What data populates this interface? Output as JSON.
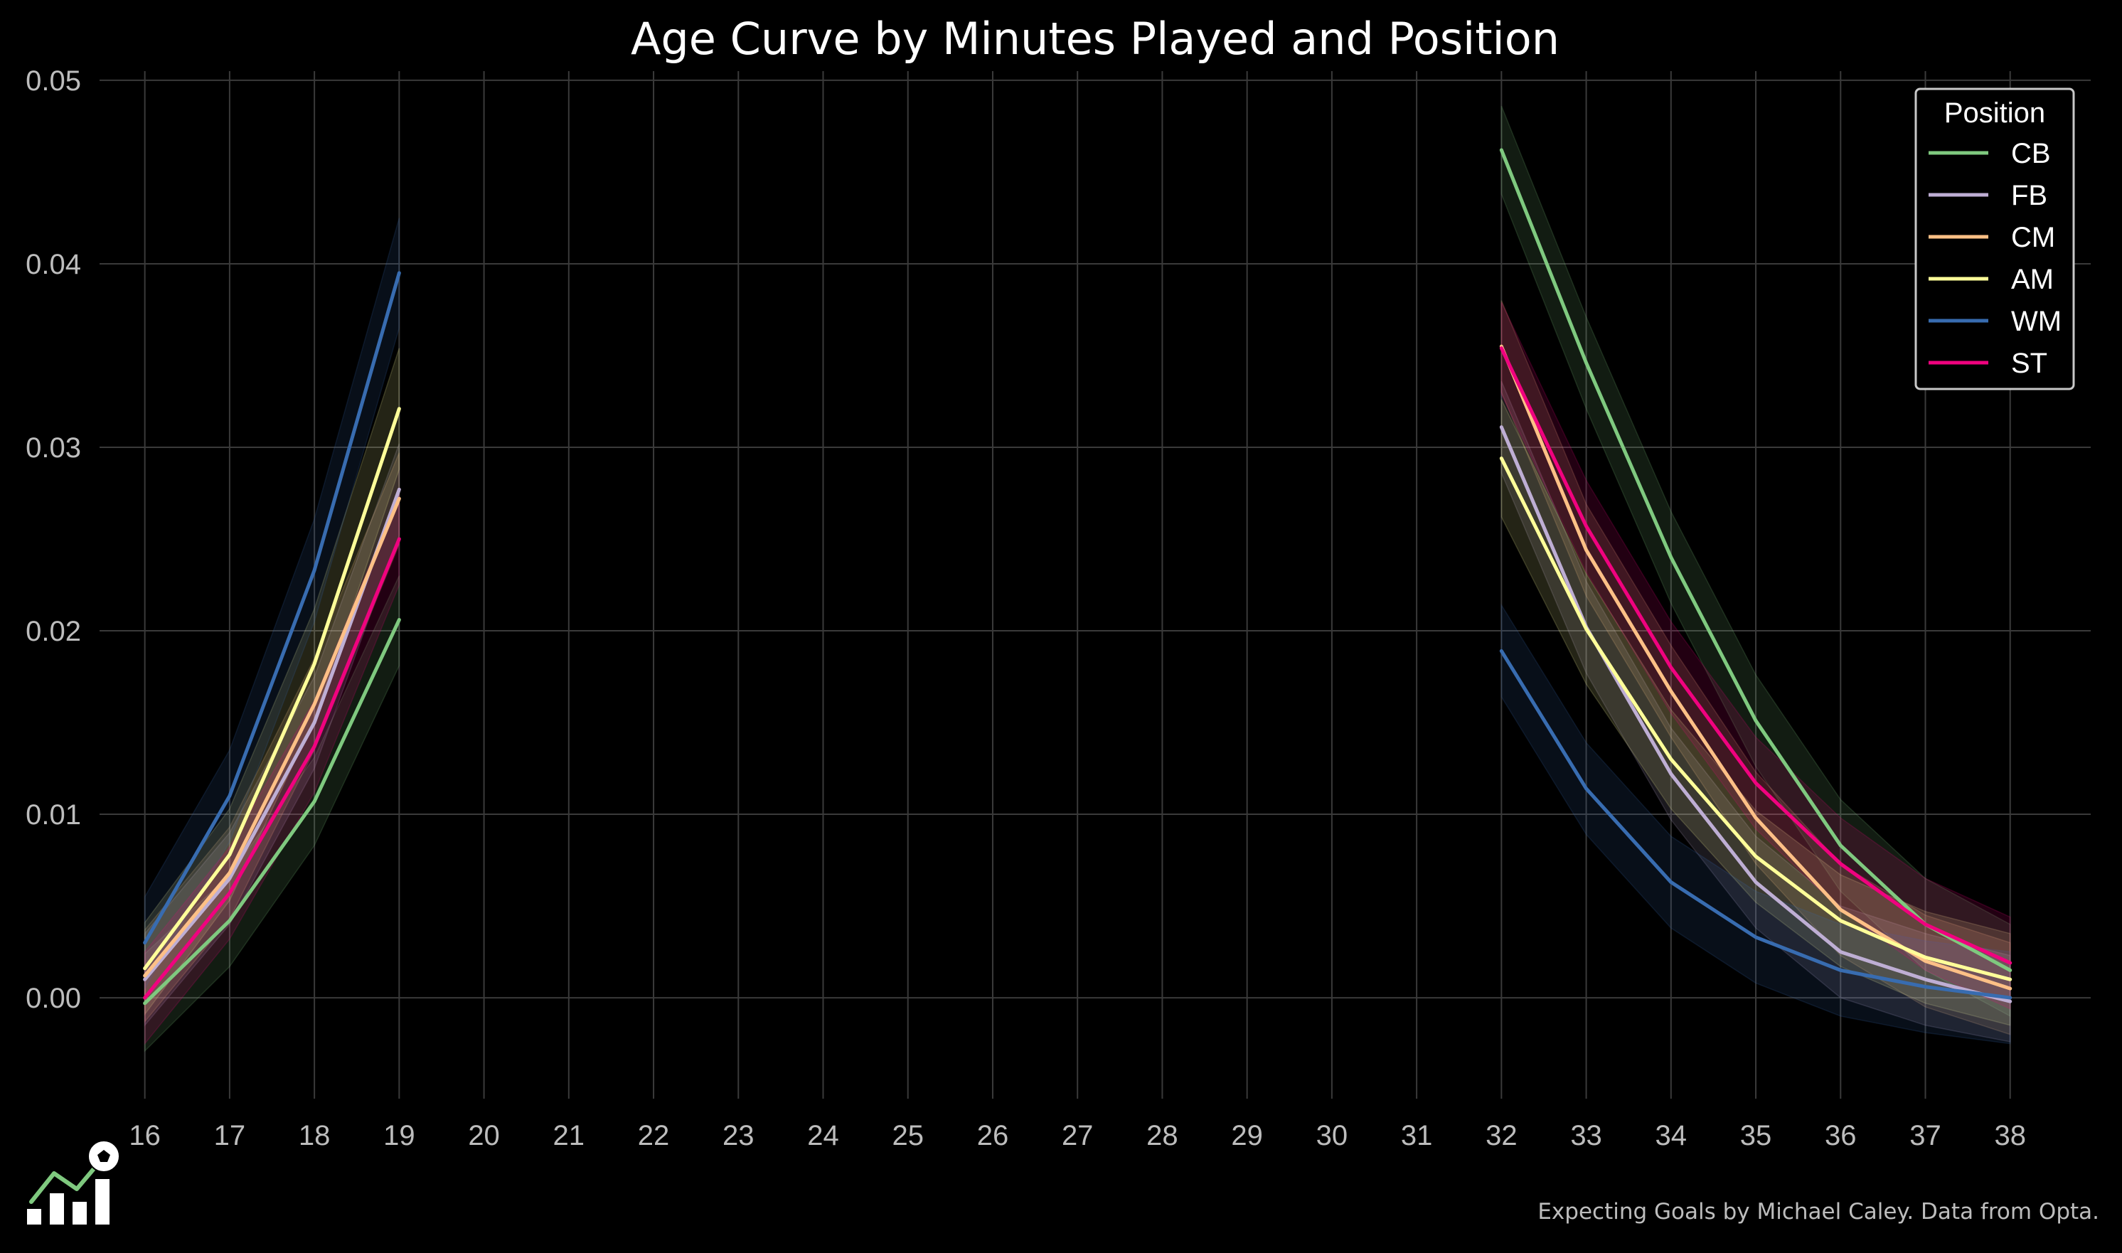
{
  "chart_data": {
    "type": "line",
    "title": "Age Curve by Minutes Played and Position",
    "xlabel": "",
    "ylabel": "",
    "x_ticks": [
      16,
      17,
      18,
      19,
      20,
      21,
      22,
      23,
      24,
      25,
      26,
      27,
      28,
      29,
      30,
      31,
      32,
      33,
      34,
      35,
      36,
      37,
      38
    ],
    "y_ticks": [
      "0.00",
      "0.01",
      "0.02",
      "0.03",
      "0.04",
      "0.05"
    ],
    "xlim": [
      15.55,
      38.95
    ],
    "ylim": [
      -0.0055,
      0.0505
    ],
    "grid": true,
    "legend": {
      "title": "Position",
      "placement": "top-right"
    },
    "segments": [
      {
        "x": [
          16,
          17,
          18,
          19
        ]
      },
      {
        "x": [
          32,
          33,
          34,
          35,
          36,
          37,
          38
        ]
      }
    ],
    "series": [
      {
        "name": "CB",
        "color": "#7fc97f",
        "segments": [
          {
            "x": [
              16,
              17,
              18,
              19
            ],
            "y": [
              -0.0003,
              0.0042,
              0.0107,
              0.0206
            ],
            "lower": [
              -0.0029,
              0.0017,
              0.0083,
              0.0181
            ],
            "upper": [
              0.0024,
              0.0067,
              0.0131,
              0.023
            ]
          },
          {
            "x": [
              32,
              33,
              34,
              35,
              36,
              37,
              38
            ],
            "y": [
              0.0462,
              0.0346,
              0.024,
              0.0151,
              0.0083,
              0.004,
              0.0015
            ],
            "lower": [
              0.0438,
              0.0321,
              0.0215,
              0.0126,
              0.0058,
              0.0015,
              -0.001
            ],
            "upper": [
              0.0486,
              0.0371,
              0.0265,
              0.0176,
              0.0108,
              0.0065,
              0.004
            ]
          }
        ]
      },
      {
        "name": "FB",
        "color": "#beaed4",
        "segments": [
          {
            "x": [
              16,
              17,
              18,
              19
            ],
            "y": [
              0.001,
              0.0065,
              0.015,
              0.0277
            ],
            "lower": [
              -0.0015,
              0.004,
              0.0125,
              0.0252
            ],
            "upper": [
              0.0035,
              0.009,
              0.0175,
              0.0302
            ]
          },
          {
            "x": [
              32,
              33,
              34,
              35,
              36,
              37,
              38
            ],
            "y": [
              0.0311,
              0.0202,
              0.0122,
              0.0063,
              0.0025,
              0.001,
              -0.0002
            ],
            "lower": [
              0.0286,
              0.0177,
              0.0097,
              0.0038,
              0.0,
              -0.0015,
              -0.0024
            ],
            "upper": [
              0.0336,
              0.0227,
              0.0147,
              0.0088,
              0.005,
              0.0035,
              0.0023
            ]
          }
        ]
      },
      {
        "name": "CM",
        "color": "#fdc086",
        "segments": [
          {
            "x": [
              16,
              17,
              18,
              19
            ],
            "y": [
              0.0012,
              0.0068,
              0.016,
              0.0272
            ],
            "lower": [
              -0.0013,
              0.0043,
              0.0135,
              0.0247
            ],
            "upper": [
              0.0037,
              0.0093,
              0.0185,
              0.0297
            ]
          },
          {
            "x": [
              32,
              33,
              34,
              35,
              36,
              37,
              38
            ],
            "y": [
              0.0355,
              0.0244,
              0.0167,
              0.0098,
              0.0048,
              0.002,
              0.0005
            ],
            "lower": [
              0.033,
              0.0219,
              0.0142,
              0.0073,
              0.0023,
              -0.0005,
              -0.002
            ],
            "upper": [
              0.038,
              0.0269,
              0.0192,
              0.0123,
              0.0073,
              0.0045,
              0.003
            ]
          }
        ]
      },
      {
        "name": "AM",
        "color": "#ffff99",
        "segments": [
          {
            "x": [
              16,
              17,
              18,
              19
            ],
            "y": [
              0.0016,
              0.0078,
              0.0182,
              0.0321
            ],
            "lower": [
              -0.0009,
              0.0053,
              0.0152,
              0.0288
            ],
            "upper": [
              0.0041,
              0.0103,
              0.0212,
              0.0354
            ]
          },
          {
            "x": [
              32,
              33,
              34,
              35,
              36,
              37,
              38
            ],
            "y": [
              0.0294,
              0.0201,
              0.013,
              0.0077,
              0.0042,
              0.0022,
              0.001
            ],
            "lower": [
              0.0262,
              0.0171,
              0.0103,
              0.0052,
              0.0017,
              -0.0003,
              -0.0015
            ],
            "upper": [
              0.0326,
              0.0231,
              0.0157,
              0.0102,
              0.0067,
              0.0047,
              0.0035
            ]
          }
        ]
      },
      {
        "name": "WM",
        "color": "#386cb0",
        "segments": [
          {
            "x": [
              16,
              17,
              18,
              19
            ],
            "y": [
              0.003,
              0.011,
              0.0233,
              0.0395
            ],
            "lower": [
              0.0005,
              0.0085,
              0.0205,
              0.0365
            ],
            "upper": [
              0.0055,
              0.0135,
              0.0261,
              0.0425
            ]
          },
          {
            "x": [
              32,
              33,
              34,
              35,
              36,
              37,
              38
            ],
            "y": [
              0.0189,
              0.0114,
              0.0063,
              0.0033,
              0.0015,
              0.0006,
              0.0
            ],
            "lower": [
              0.0164,
              0.0089,
              0.0038,
              0.0008,
              -0.001,
              -0.0019,
              -0.0025
            ],
            "upper": [
              0.0214,
              0.0139,
              0.0088,
              0.0058,
              0.004,
              0.0031,
              0.0025
            ]
          }
        ]
      },
      {
        "name": "ST",
        "color": "#f0027f",
        "segments": [
          {
            "x": [
              16,
              17,
              18,
              19
            ],
            "y": [
              0.0,
              0.0057,
              0.0137,
              0.025
            ],
            "lower": [
              -0.0025,
              0.0032,
              0.0112,
              0.0225
            ],
            "upper": [
              0.0025,
              0.0082,
              0.0162,
              0.0275
            ]
          },
          {
            "x": [
              32,
              33,
              34,
              35,
              36,
              37,
              38
            ],
            "y": [
              0.0354,
              0.0257,
              0.018,
              0.0117,
              0.0073,
              0.004,
              0.0019
            ],
            "lower": [
              0.0329,
              0.0232,
              0.0155,
              0.0092,
              0.0048,
              0.0015,
              -0.0006
            ],
            "upper": [
              0.0379,
              0.0282,
              0.0205,
              0.0142,
              0.0098,
              0.0065,
              0.0044
            ]
          }
        ]
      }
    ],
    "caption": "Expecting Goals by Michael Caley. Data from Opta.",
    "colors": {
      "background": "#000000",
      "grid": "#3a3a3a",
      "tick_text": "#bdbdbd",
      "legend_border": "#c8c8c8",
      "logo_line": "#7fc97f",
      "logo_bars": "#ffffff"
    },
    "logo": {
      "icon": "expecting-goals-logo-icon"
    }
  }
}
